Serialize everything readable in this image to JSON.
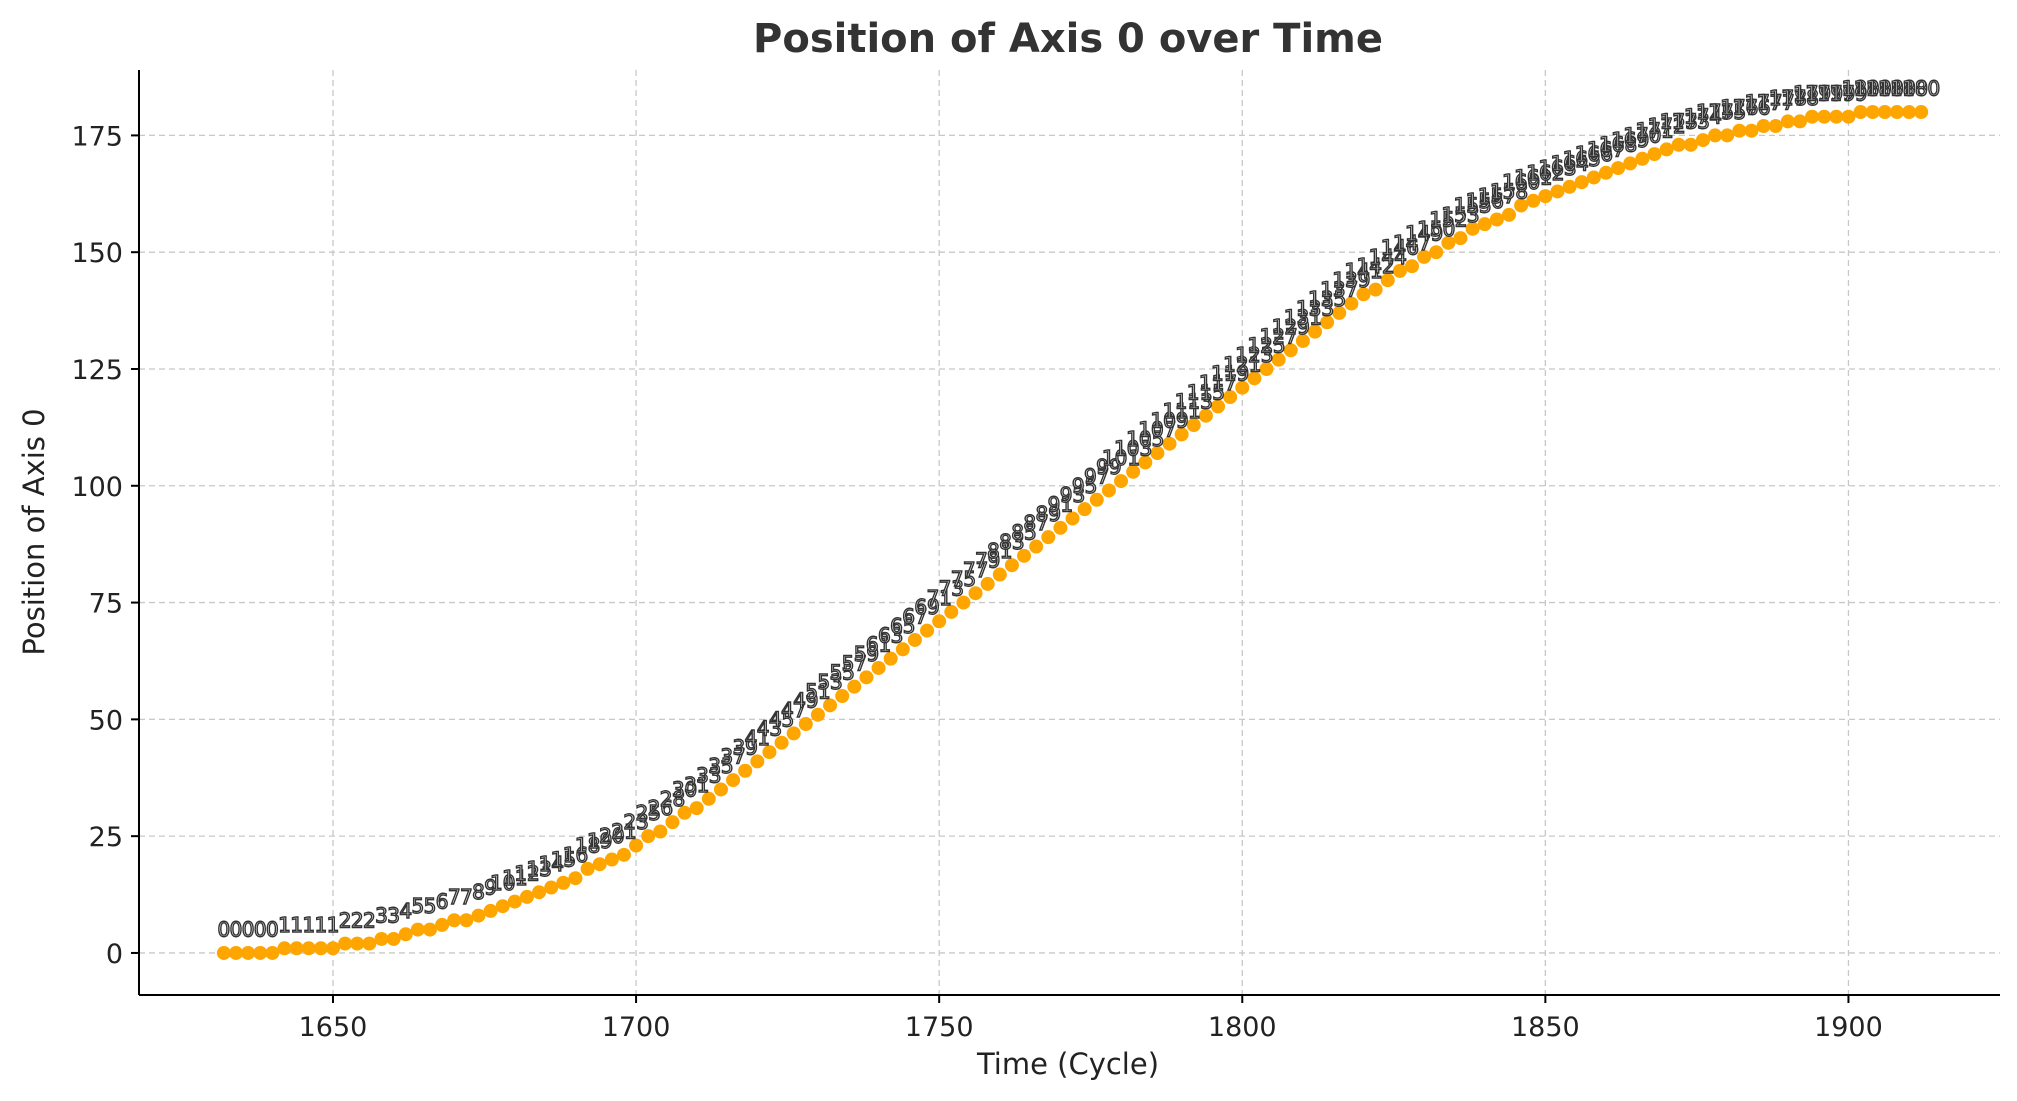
{
  "chart_data": {
    "type": "scatter",
    "title": "Position of Axis 0 over Time",
    "xlabel": "Time (Cycle)",
    "ylabel": "Position of Axis 0",
    "xlim": [
      1618,
      1925
    ],
    "ylim": [
      -9,
      189
    ],
    "xticks": [
      1650,
      1700,
      1750,
      1800,
      1850,
      1900
    ],
    "yticks": [
      0,
      25,
      50,
      75,
      100,
      125,
      150,
      175
    ],
    "grid": true,
    "legend": "none",
    "colors": {
      "series_fill": "#FFA500",
      "label_stroke": "#333333",
      "grid": "#c8c8c8"
    },
    "series": [
      {
        "marker": "filled-circle",
        "points": [
          [
            1632,
            0
          ],
          [
            1634,
            0
          ],
          [
            1636,
            0
          ],
          [
            1638,
            0
          ],
          [
            1640,
            0
          ],
          [
            1642,
            1
          ],
          [
            1644,
            1
          ],
          [
            1646,
            1
          ],
          [
            1648,
            1
          ],
          [
            1650,
            1
          ],
          [
            1652,
            2
          ],
          [
            1654,
            2
          ],
          [
            1656,
            2
          ],
          [
            1658,
            3
          ],
          [
            1660,
            3
          ],
          [
            1662,
            4
          ],
          [
            1664,
            5
          ],
          [
            1666,
            5
          ],
          [
            1668,
            6
          ],
          [
            1670,
            7
          ],
          [
            1672,
            7
          ],
          [
            1674,
            8
          ],
          [
            1676,
            9
          ],
          [
            1678,
            10
          ],
          [
            1680,
            11
          ],
          [
            1682,
            12
          ],
          [
            1684,
            13
          ],
          [
            1686,
            14
          ],
          [
            1688,
            15
          ],
          [
            1690,
            16
          ],
          [
            1692,
            18
          ],
          [
            1694,
            19
          ],
          [
            1696,
            20
          ],
          [
            1698,
            21
          ],
          [
            1700,
            23
          ],
          [
            1702,
            25
          ],
          [
            1704,
            26
          ],
          [
            1706,
            28
          ],
          [
            1708,
            30
          ],
          [
            1710,
            31
          ],
          [
            1712,
            33
          ],
          [
            1714,
            35
          ],
          [
            1716,
            37
          ],
          [
            1718,
            39
          ],
          [
            1720,
            41
          ],
          [
            1722,
            43
          ],
          [
            1724,
            45
          ],
          [
            1726,
            47
          ],
          [
            1728,
            49
          ],
          [
            1730,
            51
          ],
          [
            1732,
            53
          ],
          [
            1734,
            55
          ],
          [
            1736,
            57
          ],
          [
            1738,
            59
          ],
          [
            1740,
            61
          ],
          [
            1742,
            63
          ],
          [
            1744,
            65
          ],
          [
            1746,
            67
          ],
          [
            1748,
            69
          ],
          [
            1750,
            71
          ],
          [
            1752,
            73
          ],
          [
            1754,
            75
          ],
          [
            1756,
            77
          ],
          [
            1758,
            79
          ],
          [
            1760,
            81
          ],
          [
            1762,
            83
          ],
          [
            1764,
            85
          ],
          [
            1766,
            87
          ],
          [
            1768,
            89
          ],
          [
            1770,
            91
          ],
          [
            1772,
            93
          ],
          [
            1774,
            95
          ],
          [
            1776,
            97
          ],
          [
            1778,
            99
          ],
          [
            1780,
            101
          ],
          [
            1782,
            103
          ],
          [
            1784,
            105
          ],
          [
            1786,
            107
          ],
          [
            1788,
            109
          ],
          [
            1790,
            111
          ],
          [
            1792,
            113
          ],
          [
            1794,
            115
          ],
          [
            1796,
            117
          ],
          [
            1798,
            119
          ],
          [
            1800,
            121
          ],
          [
            1802,
            123
          ],
          [
            1804,
            125
          ],
          [
            1806,
            127
          ],
          [
            1808,
            129
          ],
          [
            1810,
            131
          ],
          [
            1812,
            133
          ],
          [
            1814,
            135
          ],
          [
            1816,
            137
          ],
          [
            1818,
            139
          ],
          [
            1820,
            141
          ],
          [
            1822,
            142
          ],
          [
            1824,
            144
          ],
          [
            1826,
            146
          ],
          [
            1828,
            147
          ],
          [
            1830,
            149
          ],
          [
            1832,
            150
          ],
          [
            1834,
            152
          ],
          [
            1836,
            153
          ],
          [
            1838,
            155
          ],
          [
            1840,
            156
          ],
          [
            1842,
            157
          ],
          [
            1844,
            158
          ],
          [
            1846,
            160
          ],
          [
            1848,
            161
          ],
          [
            1850,
            162
          ],
          [
            1852,
            163
          ],
          [
            1854,
            164
          ],
          [
            1856,
            165
          ],
          [
            1858,
            166
          ],
          [
            1860,
            167
          ],
          [
            1862,
            168
          ],
          [
            1864,
            169
          ],
          [
            1866,
            170
          ],
          [
            1868,
            171
          ],
          [
            1870,
            172
          ],
          [
            1872,
            173
          ],
          [
            1874,
            173
          ],
          [
            1876,
            174
          ],
          [
            1878,
            175
          ],
          [
            1880,
            175
          ],
          [
            1882,
            176
          ],
          [
            1884,
            176
          ],
          [
            1886,
            177
          ],
          [
            1888,
            177
          ],
          [
            1890,
            178
          ],
          [
            1892,
            178
          ],
          [
            1894,
            179
          ],
          [
            1896,
            179
          ],
          [
            1898,
            179
          ],
          [
            1900,
            179
          ],
          [
            1902,
            180
          ],
          [
            1904,
            180
          ],
          [
            1906,
            180
          ],
          [
            1908,
            180
          ],
          [
            1910,
            180
          ],
          [
            1912,
            180
          ]
        ]
      },
      {
        "marker": "text-label",
        "points": [
          [
            1632,
            5,
            "0"
          ],
          [
            1634,
            5,
            "0"
          ],
          [
            1636,
            5,
            "0"
          ],
          [
            1638,
            5,
            "0"
          ],
          [
            1640,
            5,
            "0"
          ],
          [
            1642,
            6,
            "1"
          ],
          [
            1644,
            6,
            "1"
          ],
          [
            1646,
            6,
            "1"
          ],
          [
            1648,
            6,
            "1"
          ],
          [
            1650,
            6,
            "1"
          ],
          [
            1652,
            7,
            "2"
          ],
          [
            1654,
            7,
            "2"
          ],
          [
            1656,
            7,
            "2"
          ],
          [
            1658,
            8,
            "3"
          ],
          [
            1660,
            8,
            "3"
          ],
          [
            1662,
            9,
            "4"
          ],
          [
            1664,
            10,
            "5"
          ],
          [
            1666,
            10,
            "5"
          ],
          [
            1668,
            11,
            "6"
          ],
          [
            1670,
            12,
            "7"
          ],
          [
            1672,
            12,
            "7"
          ],
          [
            1674,
            13,
            "8"
          ],
          [
            1676,
            14,
            "9"
          ],
          [
            1678,
            15,
            "10"
          ],
          [
            1680,
            16,
            "11"
          ],
          [
            1682,
            17,
            "12"
          ],
          [
            1684,
            18,
            "13"
          ],
          [
            1686,
            19,
            "14"
          ],
          [
            1688,
            20,
            "15"
          ],
          [
            1690,
            21,
            "16"
          ],
          [
            1692,
            23,
            "18"
          ],
          [
            1694,
            24,
            "19"
          ],
          [
            1696,
            25,
            "20"
          ],
          [
            1698,
            26,
            "21"
          ],
          [
            1700,
            28,
            "23"
          ],
          [
            1702,
            30,
            "25"
          ],
          [
            1704,
            31,
            "26"
          ],
          [
            1706,
            33,
            "28"
          ],
          [
            1708,
            35,
            "30"
          ],
          [
            1710,
            36,
            "31"
          ],
          [
            1712,
            38,
            "33"
          ],
          [
            1714,
            40,
            "35"
          ],
          [
            1716,
            42,
            "37"
          ],
          [
            1718,
            44,
            "39"
          ],
          [
            1720,
            46,
            "41"
          ],
          [
            1722,
            48,
            "43"
          ],
          [
            1724,
            50,
            "45"
          ],
          [
            1726,
            52,
            "47"
          ],
          [
            1728,
            54,
            "49"
          ],
          [
            1730,
            56,
            "51"
          ],
          [
            1732,
            58,
            "53"
          ],
          [
            1734,
            60,
            "55"
          ],
          [
            1736,
            62,
            "57"
          ],
          [
            1738,
            64,
            "59"
          ],
          [
            1740,
            66,
            "61"
          ],
          [
            1742,
            68,
            "63"
          ],
          [
            1744,
            70,
            "65"
          ],
          [
            1746,
            72,
            "67"
          ],
          [
            1748,
            74,
            "69"
          ],
          [
            1750,
            76,
            "71"
          ],
          [
            1752,
            78,
            "73"
          ],
          [
            1754,
            80,
            "75"
          ],
          [
            1756,
            82,
            "77"
          ],
          [
            1758,
            84,
            "79"
          ],
          [
            1760,
            86,
            "81"
          ],
          [
            1762,
            88,
            "83"
          ],
          [
            1764,
            90,
            "85"
          ],
          [
            1766,
            92,
            "87"
          ],
          [
            1768,
            94,
            "89"
          ],
          [
            1770,
            96,
            "91"
          ],
          [
            1772,
            98,
            "93"
          ],
          [
            1774,
            100,
            "95"
          ],
          [
            1776,
            102,
            "97"
          ],
          [
            1778,
            104,
            "99"
          ],
          [
            1780,
            106,
            "101"
          ],
          [
            1782,
            108,
            "103"
          ],
          [
            1784,
            110,
            "105"
          ],
          [
            1786,
            112,
            "107"
          ],
          [
            1788,
            114,
            "109"
          ],
          [
            1790,
            116,
            "111"
          ],
          [
            1792,
            118,
            "113"
          ],
          [
            1794,
            120,
            "115"
          ],
          [
            1796,
            122,
            "117"
          ],
          [
            1798,
            124,
            "119"
          ],
          [
            1800,
            126,
            "121"
          ],
          [
            1802,
            128,
            "123"
          ],
          [
            1804,
            130,
            "125"
          ],
          [
            1806,
            132,
            "127"
          ],
          [
            1808,
            134,
            "129"
          ],
          [
            1810,
            136,
            "131"
          ],
          [
            1812,
            138,
            "133"
          ],
          [
            1814,
            140,
            "135"
          ],
          [
            1816,
            142,
            "137"
          ],
          [
            1818,
            144,
            "139"
          ],
          [
            1820,
            146,
            "141"
          ],
          [
            1822,
            147,
            "142"
          ],
          [
            1824,
            149,
            "144"
          ],
          [
            1826,
            151,
            "146"
          ],
          [
            1828,
            152,
            "147"
          ],
          [
            1830,
            154,
            "149"
          ],
          [
            1832,
            155,
            "150"
          ],
          [
            1834,
            157,
            "152"
          ],
          [
            1836,
            158,
            "153"
          ],
          [
            1838,
            160,
            "155"
          ],
          [
            1840,
            161,
            "156"
          ],
          [
            1842,
            162,
            "157"
          ],
          [
            1844,
            163,
            "158"
          ],
          [
            1846,
            165,
            "160"
          ],
          [
            1848,
            166,
            "161"
          ],
          [
            1850,
            167,
            "162"
          ],
          [
            1852,
            168,
            "163"
          ],
          [
            1854,
            169,
            "164"
          ],
          [
            1856,
            170,
            "165"
          ],
          [
            1858,
            171,
            "166"
          ],
          [
            1860,
            172,
            "167"
          ],
          [
            1862,
            173,
            "168"
          ],
          [
            1864,
            174,
            "169"
          ],
          [
            1866,
            175,
            "170"
          ],
          [
            1868,
            176,
            "171"
          ],
          [
            1870,
            177,
            "172"
          ],
          [
            1872,
            178,
            "173"
          ],
          [
            1874,
            178,
            "173"
          ],
          [
            1876,
            179,
            "174"
          ],
          [
            1878,
            180,
            "175"
          ],
          [
            1880,
            180,
            "175"
          ],
          [
            1882,
            181,
            "176"
          ],
          [
            1884,
            181,
            "176"
          ],
          [
            1886,
            182,
            "177"
          ],
          [
            1888,
            182,
            "177"
          ],
          [
            1890,
            183,
            "178"
          ],
          [
            1892,
            183,
            "178"
          ],
          [
            1894,
            184,
            "179"
          ],
          [
            1896,
            184,
            "179"
          ],
          [
            1898,
            184,
            "179"
          ],
          [
            1900,
            184,
            "179"
          ],
          [
            1902,
            185,
            "180"
          ],
          [
            1904,
            185,
            "180"
          ],
          [
            1906,
            185,
            "180"
          ],
          [
            1908,
            185,
            "180"
          ],
          [
            1910,
            185,
            "180"
          ],
          [
            1912,
            185,
            "180"
          ]
        ]
      }
    ]
  }
}
